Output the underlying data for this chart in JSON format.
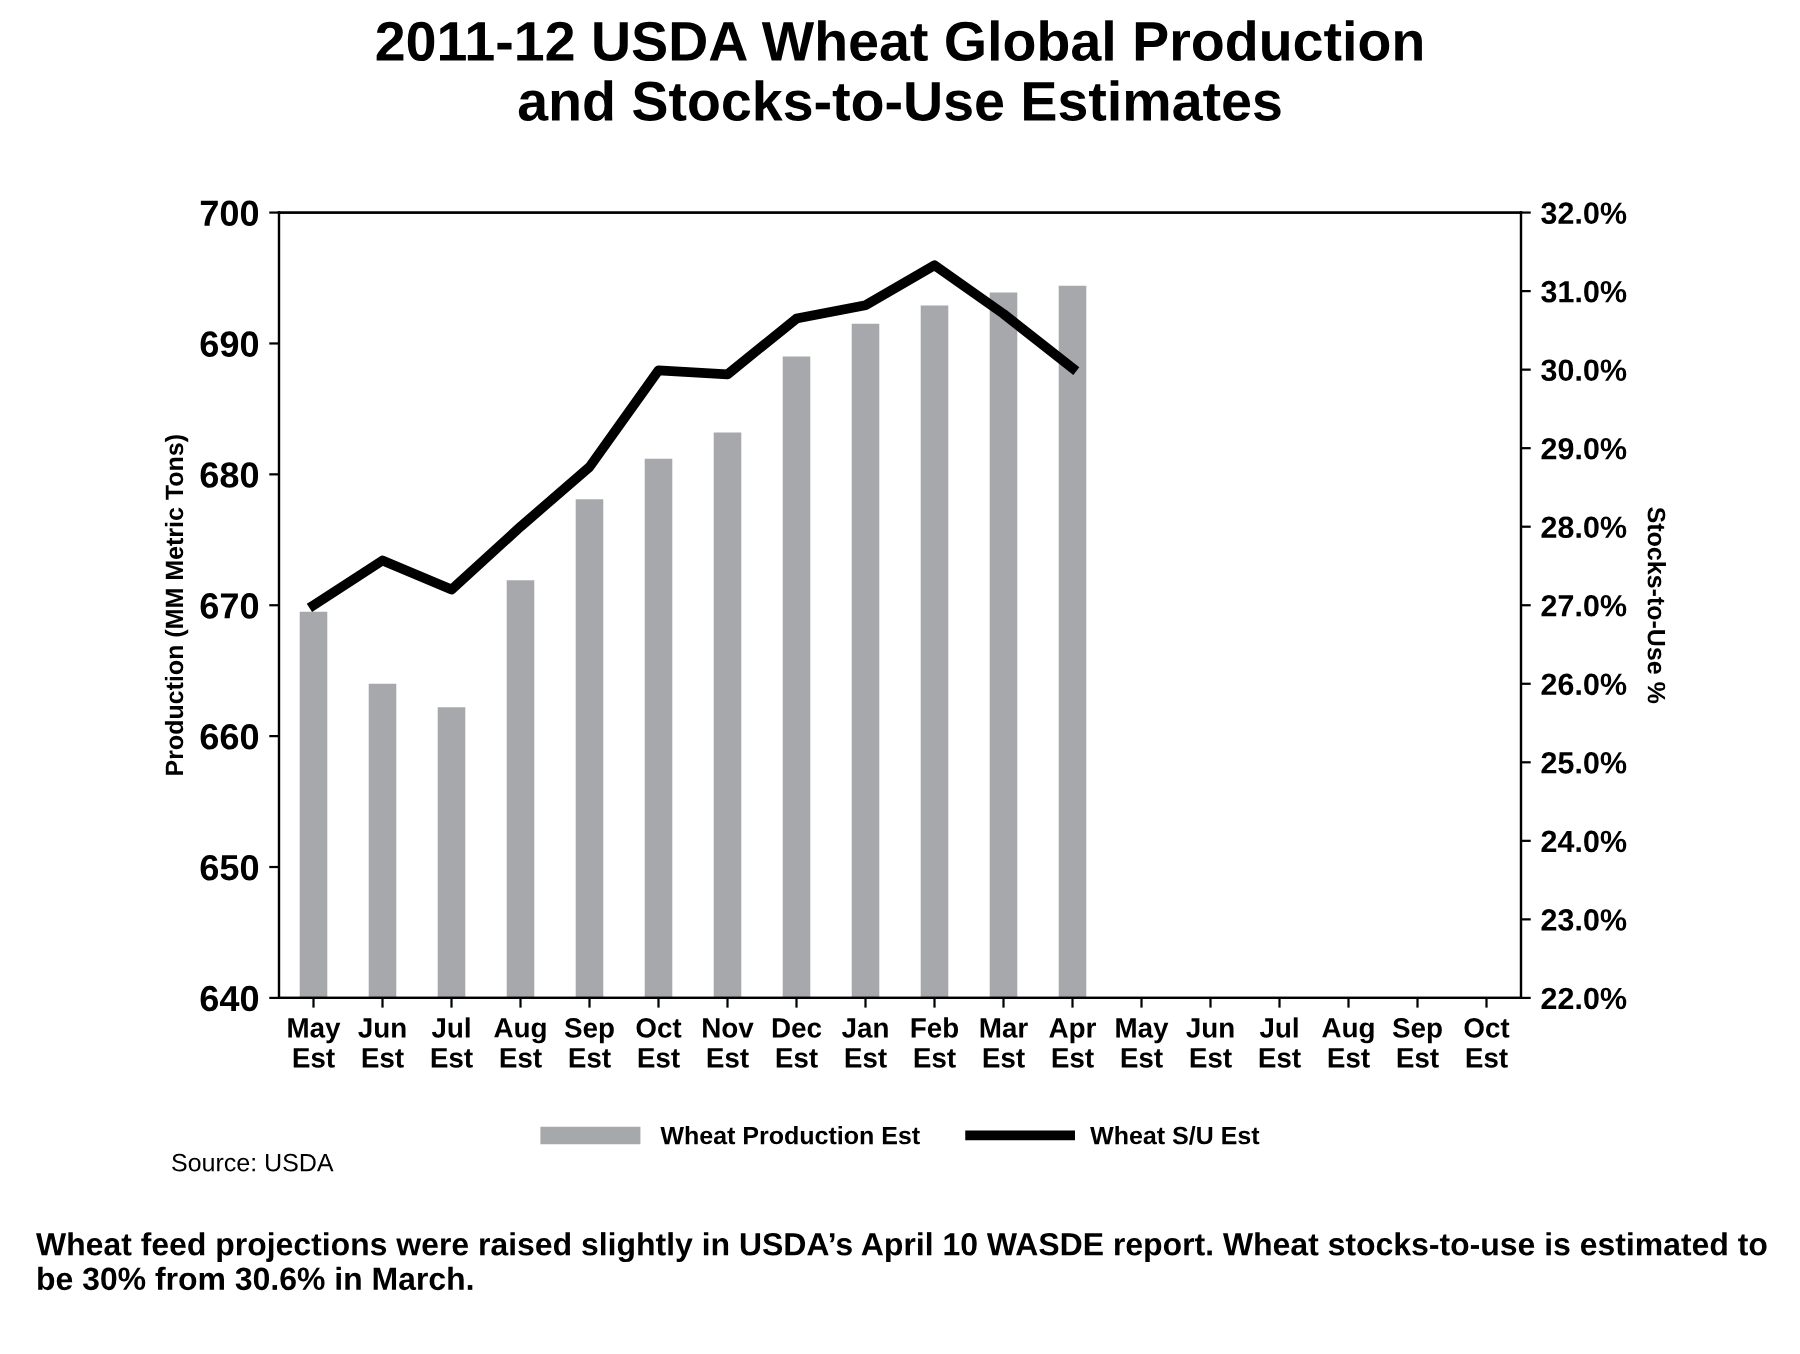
{
  "chart_data": {
    "type": "bar",
    "title": "2011-12 USDA Wheat Global Production\nand Stocks-to-Use Estimates",
    "categories": [
      "May\nEst",
      "Jun\nEst",
      "Jul\nEst",
      "Aug\nEst",
      "Sep\nEst",
      "Oct\nEst",
      "Nov\nEst",
      "Dec\nEst",
      "Jan\nEst",
      "Feb\nEst",
      "Mar\nEst",
      "Apr\nEst",
      "May\nEst",
      "Jun\nEst",
      "Jul\nEst",
      "Aug\nEst",
      "Sep\nEst",
      "Oct\nEst"
    ],
    "series": [
      {
        "name": "Wheat Production Est",
        "color": "#a7a8ac",
        "values": [
          669.5,
          664.0,
          662.2,
          671.9,
          678.1,
          681.2,
          683.2,
          689.0,
          691.5,
          692.9,
          693.9,
          694.4,
          null,
          null,
          null,
          null,
          null,
          null
        ]
      },
      {
        "name": "Wheat S/U Est",
        "type": "line",
        "axis": "y2",
        "color": "#000000",
        "values": [
          27.0,
          27.57,
          27.2,
          28.0,
          28.76,
          29.99,
          29.94,
          30.65,
          30.82,
          31.33,
          30.71,
          30.02,
          null,
          null,
          null,
          null,
          null,
          null
        ]
      }
    ],
    "ylabel": "Production (MM Metric Tons)",
    "y2label": "Stocks-to-Use %",
    "ylim": [
      640,
      700
    ],
    "yticks": [
      640,
      650,
      660,
      670,
      680,
      690,
      700
    ],
    "y2lim": [
      22,
      32
    ],
    "y2ticks": [
      {
        "value": 22,
        "label": "22.0%"
      },
      {
        "value": 23,
        "label": "23.0%"
      },
      {
        "value": 24,
        "label": "24.0%"
      },
      {
        "value": 25,
        "label": "25.0%"
      },
      {
        "value": 26,
        "label": "26.0%"
      },
      {
        "value": 27,
        "label": "27.0%"
      },
      {
        "value": 28,
        "label": "28.0%"
      },
      {
        "value": 29,
        "label": "29.0%"
      },
      {
        "value": 30,
        "label": "30.0%"
      },
      {
        "value": 31,
        "label": "31.0%"
      },
      {
        "value": 32,
        "label": "32.0%"
      }
    ],
    "legend": "bottom",
    "grid": false,
    "annotations": [
      "Source: USDA",
      "Wheat feed projections were raised slightly in USDA’s April 10 WASDE report. Wheat stocks-to-use is estimated to be 30% from 30.6% in March."
    ]
  }
}
